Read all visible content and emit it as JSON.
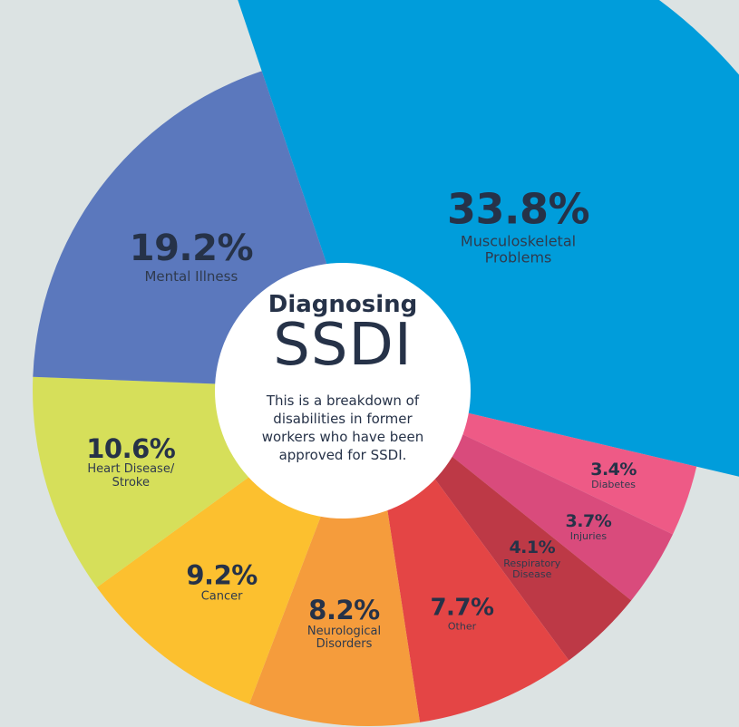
{
  "chart_data": {
    "type": "pie",
    "title": "Diagnosing",
    "subtitle": "SSDI",
    "description": "This is a breakdown of disabilities in former workers who have been approved for SSDI.",
    "slices": [
      {
        "label": "Musculoskeletal\nProblems",
        "value": 33.8,
        "value_label": "33.8%",
        "color": "#009ddb"
      },
      {
        "label": "Diabetes",
        "value": 3.4,
        "value_label": "3.4%",
        "color": "#ee5a86"
      },
      {
        "label": "Injuries",
        "value": 3.7,
        "value_label": "3.7%",
        "color": "#d94b7c"
      },
      {
        "label": "Respiratory\nDisease",
        "value": 4.1,
        "value_label": "4.1%",
        "color": "#bd3946"
      },
      {
        "label": "Other",
        "value": 7.7,
        "value_label": "7.7%",
        "color": "#e44545"
      },
      {
        "label": "Neurological\nDisorders",
        "value": 8.2,
        "value_label": "8.2%",
        "color": "#f59c3c"
      },
      {
        "label": "Cancer",
        "value": 9.2,
        "value_label": "9.2%",
        "color": "#fcc02f"
      },
      {
        "label": "Heart Disease/\nStroke",
        "value": 10.6,
        "value_label": "10.6%",
        "color": "#d6df5a"
      },
      {
        "label": "Mental Illness",
        "value": 19.2,
        "value_label": "19.2%",
        "color": "#5b78bd"
      }
    ]
  }
}
